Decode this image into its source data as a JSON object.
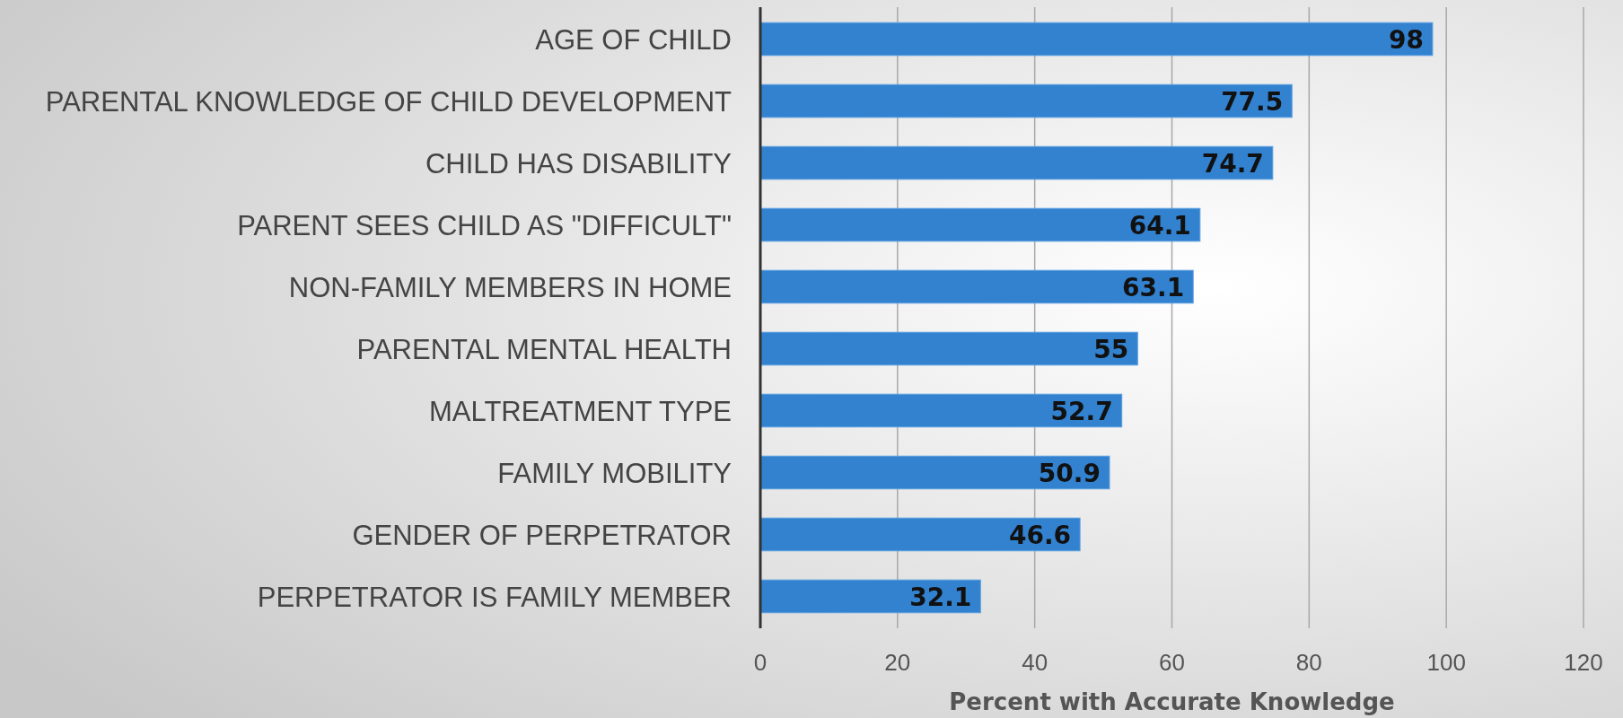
{
  "chart_data": {
    "type": "bar",
    "orientation": "horizontal",
    "xlabel": "Percent with Accurate Knowledge",
    "categories": [
      "AGE OF CHILD",
      "PARENTAL KNOWLEDGE OF CHILD DEVELOPMENT",
      "CHILD HAS DISABILITY",
      "PARENT SEES CHILD AS \"DIFFICULT\"",
      "NON-FAMILY MEMBERS IN HOME",
      "PARENTAL MENTAL HEALTH",
      "MALTREATMENT TYPE",
      "FAMILY MOBILITY",
      "GENDER OF PERPETRATOR",
      "PERPETRATOR IS FAMILY MEMBER"
    ],
    "values": [
      98,
      77.5,
      74.7,
      64.1,
      63.1,
      55,
      52.7,
      50.9,
      46.6,
      32.1
    ],
    "color": "#3282d0",
    "xlim": [
      0,
      120
    ],
    "xticks": [
      0,
      20,
      40,
      60,
      80,
      100,
      120
    ],
    "grid": "x",
    "data_labels": true
  }
}
